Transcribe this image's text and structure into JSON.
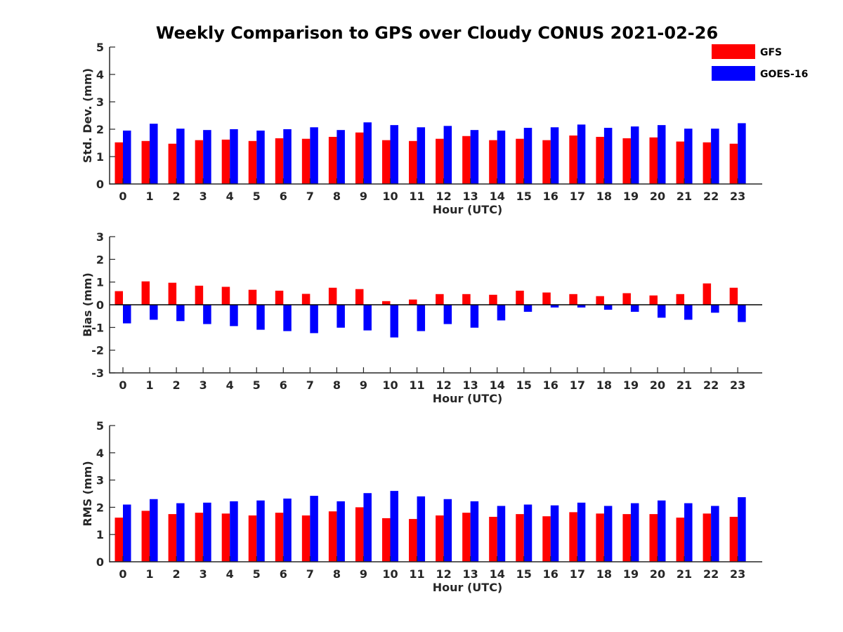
{
  "title": "Weekly Comparison to GPS over Cloudy CONUS 2021-02-26",
  "legend": {
    "placement": "top-right",
    "items": [
      {
        "label": "GFS",
        "color": "#ff0000"
      },
      {
        "label": "GOES-16",
        "color": "#0000ff"
      }
    ]
  },
  "chart_data": [
    {
      "type": "bar",
      "xlabel": "Hour (UTC)",
      "ylabel": "Std. Dev. (mm)",
      "ylim": [
        0,
        5
      ],
      "yticks": [
        0,
        1,
        2,
        3,
        4,
        5
      ],
      "grid": false,
      "categories": [
        "0",
        "1",
        "2",
        "3",
        "4",
        "5",
        "6",
        "7",
        "8",
        "9",
        "10",
        "11",
        "12",
        "13",
        "14",
        "15",
        "16",
        "17",
        "18",
        "19",
        "20",
        "21",
        "22",
        "23"
      ],
      "series": [
        {
          "name": "GFS",
          "color": "#ff0000",
          "values": [
            1.52,
            1.57,
            1.47,
            1.6,
            1.62,
            1.57,
            1.67,
            1.65,
            1.72,
            1.88,
            1.6,
            1.57,
            1.65,
            1.75,
            1.6,
            1.65,
            1.6,
            1.77,
            1.72,
            1.67,
            1.7,
            1.55,
            1.52,
            1.47
          ]
        },
        {
          "name": "GOES-16",
          "color": "#0000ff",
          "values": [
            1.95,
            2.2,
            2.02,
            1.97,
            2.0,
            1.95,
            2.0,
            2.07,
            1.97,
            2.25,
            2.15,
            2.07,
            2.12,
            1.97,
            1.95,
            2.05,
            2.07,
            2.17,
            2.05,
            2.1,
            2.15,
            2.02,
            2.02,
            2.22
          ]
        }
      ]
    },
    {
      "type": "bar",
      "xlabel": "Hour (UTC)",
      "ylabel": "Bias (mm)",
      "ylim": [
        -3,
        3
      ],
      "yticks": [
        -3,
        -2,
        -1,
        0,
        1,
        2,
        3
      ],
      "grid": false,
      "zero_line": true,
      "categories": [
        "0",
        "1",
        "2",
        "3",
        "4",
        "5",
        "6",
        "7",
        "8",
        "9",
        "10",
        "11",
        "12",
        "13",
        "14",
        "15",
        "16",
        "17",
        "18",
        "19",
        "20",
        "21",
        "22",
        "23"
      ],
      "series": [
        {
          "name": "GFS",
          "color": "#ff0000",
          "values": [
            0.6,
            1.03,
            0.97,
            0.84,
            0.79,
            0.66,
            0.62,
            0.48,
            0.75,
            0.69,
            0.16,
            0.23,
            0.47,
            0.47,
            0.44,
            0.62,
            0.54,
            0.47,
            0.38,
            0.51,
            0.41,
            0.47,
            0.94,
            0.75
          ]
        },
        {
          "name": "GOES-16",
          "color": "#0000ff",
          "values": [
            -0.82,
            -0.66,
            -0.72,
            -0.85,
            -0.94,
            -1.1,
            -1.16,
            -1.25,
            -1.01,
            -1.13,
            -1.44,
            -1.16,
            -0.85,
            -1.01,
            -0.69,
            -0.31,
            -0.12,
            -0.12,
            -0.22,
            -0.31,
            -0.57,
            -0.66,
            -0.35,
            -0.76
          ]
        }
      ]
    },
    {
      "type": "bar",
      "xlabel": "Hour (UTC)",
      "ylabel": "RMS (mm)",
      "ylim": [
        0,
        5
      ],
      "yticks": [
        0,
        1,
        2,
        3,
        4,
        5
      ],
      "grid": false,
      "categories": [
        "0",
        "1",
        "2",
        "3",
        "4",
        "5",
        "6",
        "7",
        "8",
        "9",
        "10",
        "11",
        "12",
        "13",
        "14",
        "15",
        "16",
        "17",
        "18",
        "19",
        "20",
        "21",
        "22",
        "23"
      ],
      "series": [
        {
          "name": "GFS",
          "color": "#ff0000",
          "values": [
            1.62,
            1.87,
            1.75,
            1.8,
            1.77,
            1.7,
            1.8,
            1.7,
            1.85,
            2.0,
            1.6,
            1.57,
            1.7,
            1.8,
            1.65,
            1.75,
            1.67,
            1.82,
            1.77,
            1.75,
            1.75,
            1.62,
            1.77,
            1.65
          ]
        },
        {
          "name": "GOES-16",
          "color": "#0000ff",
          "values": [
            2.1,
            2.3,
            2.15,
            2.17,
            2.22,
            2.25,
            2.32,
            2.42,
            2.22,
            2.52,
            2.6,
            2.4,
            2.3,
            2.22,
            2.05,
            2.1,
            2.07,
            2.17,
            2.05,
            2.15,
            2.25,
            2.15,
            2.05,
            2.37
          ]
        }
      ]
    }
  ]
}
